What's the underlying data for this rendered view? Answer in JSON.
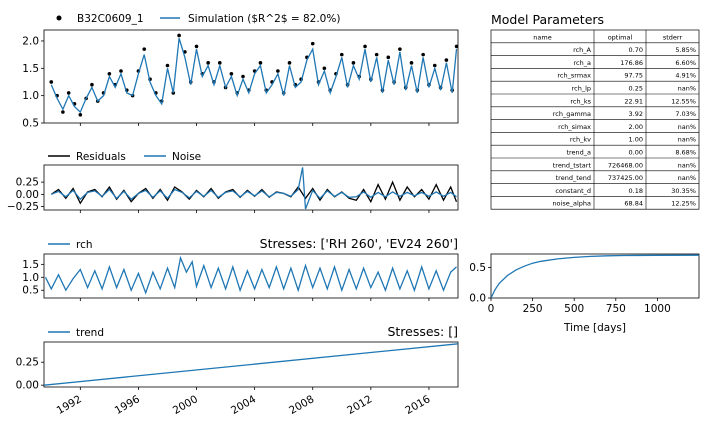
{
  "figure": {
    "params_title": "Model Parameters",
    "params_table": {
      "headers": [
        "name",
        "optimal",
        "stderr"
      ],
      "rows": [
        [
          "rch_A",
          "0.70",
          "5.85%"
        ],
        [
          "rch_a",
          "176.86",
          "6.60%"
        ],
        [
          "rch_srmax",
          "97.75",
          "4.91%"
        ],
        [
          "rch_lp",
          "0.25",
          "nan%"
        ],
        [
          "rch_ks",
          "22.91",
          "12.55%"
        ],
        [
          "rch_gamma",
          "3.92",
          "7.03%"
        ],
        [
          "rch_simax",
          "2.00",
          "nan%"
        ],
        [
          "rch_kv",
          "1.00",
          "nan%"
        ],
        [
          "trend_a",
          "0.00",
          "8.68%"
        ],
        [
          "trend_tstart",
          "726468.00",
          "nan%"
        ],
        [
          "trend_tend",
          "737425.00",
          "nan%"
        ],
        [
          "constant_d",
          "0.18",
          "30.35%"
        ],
        [
          "noise_alpha",
          "68.84",
          "12.25%"
        ]
      ]
    }
  },
  "chart_data": [
    {
      "type": "scatter",
      "panel": "simulation",
      "legend": [
        "B32C0609_1",
        "Simulation ($R^2$ = 82.0%)"
      ],
      "legend_placement": "top",
      "ylim": [
        0.5,
        2.2
      ],
      "y_ticks": [
        "0.5",
        "1.0",
        "1.5",
        "2.0"
      ],
      "xlim": [
        1989.5,
        2018.0
      ],
      "series": [
        {
          "name": "B32C0609_1",
          "style": "dots",
          "color": "#000000",
          "x": [
            1990.0,
            1990.4,
            1990.8,
            1991.2,
            1991.6,
            1992.0,
            1992.4,
            1992.8,
            1993.2,
            1993.6,
            1994.0,
            1994.4,
            1994.8,
            1995.2,
            1995.6,
            1996.0,
            1996.4,
            1996.8,
            1997.2,
            1997.6,
            1998.0,
            1998.4,
            1998.8,
            1999.2,
            1999.6,
            2000.0,
            2000.4,
            2000.8,
            2001.2,
            2001.6,
            2002.0,
            2002.4,
            2002.8,
            2003.2,
            2003.6,
            2004.0,
            2004.4,
            2004.8,
            2005.2,
            2005.6,
            2006.0,
            2006.4,
            2006.8,
            2007.2,
            2007.6,
            2008.0,
            2008.4,
            2008.8,
            2009.2,
            2009.6,
            2010.0,
            2010.4,
            2010.8,
            2011.2,
            2011.6,
            2012.0,
            2012.4,
            2012.8,
            2013.2,
            2013.6,
            2014.0,
            2014.4,
            2014.8,
            2015.2,
            2015.6,
            2016.0,
            2016.4,
            2016.8,
            2017.2,
            2017.6,
            2017.9
          ],
          "y": [
            1.25,
            1.0,
            0.7,
            1.05,
            0.85,
            0.65,
            0.95,
            1.2,
            0.9,
            1.05,
            1.4,
            1.2,
            1.45,
            1.1,
            1.0,
            1.45,
            1.85,
            1.3,
            1.05,
            0.9,
            1.55,
            1.05,
            2.1,
            1.8,
            1.25,
            1.9,
            1.4,
            1.6,
            1.25,
            1.6,
            1.15,
            1.4,
            1.05,
            1.35,
            1.1,
            1.45,
            1.6,
            1.1,
            1.25,
            1.45,
            1.05,
            1.6,
            1.2,
            1.3,
            1.7,
            1.95,
            1.25,
            1.5,
            1.1,
            1.4,
            1.75,
            1.2,
            1.6,
            1.35,
            1.9,
            1.3,
            1.75,
            1.1,
            1.7,
            1.25,
            1.85,
            1.15,
            1.6,
            1.1,
            1.75,
            1.2,
            1.55,
            1.15,
            1.65,
            1.1,
            1.9
          ]
        },
        {
          "name": "Simulation ($R^2$ = 82.0%)",
          "style": "line",
          "color": "#1f77b4",
          "x": [
            1990.0,
            1990.4,
            1990.8,
            1991.2,
            1991.6,
            1992.0,
            1992.4,
            1992.8,
            1993.2,
            1993.6,
            1994.0,
            1994.4,
            1994.8,
            1995.2,
            1995.6,
            1996.0,
            1996.4,
            1996.8,
            1997.2,
            1997.6,
            1998.0,
            1998.4,
            1998.8,
            1999.2,
            1999.6,
            2000.0,
            2000.4,
            2000.8,
            2001.2,
            2001.6,
            2002.0,
            2002.4,
            2002.8,
            2003.2,
            2003.6,
            2004.0,
            2004.4,
            2004.8,
            2005.2,
            2005.6,
            2006.0,
            2006.4,
            2006.8,
            2007.2,
            2007.6,
            2008.0,
            2008.4,
            2008.8,
            2009.2,
            2009.6,
            2010.0,
            2010.4,
            2010.8,
            2011.2,
            2011.6,
            2012.0,
            2012.4,
            2012.8,
            2013.2,
            2013.6,
            2014.0,
            2014.4,
            2014.8,
            2015.2,
            2015.6,
            2016.0,
            2016.4,
            2016.8,
            2017.2,
            2017.6,
            2017.9
          ],
          "y": [
            1.2,
            0.95,
            0.75,
            1.0,
            0.8,
            0.7,
            0.95,
            1.15,
            0.9,
            1.0,
            1.35,
            1.15,
            1.4,
            1.05,
            1.0,
            1.4,
            1.75,
            1.25,
            1.0,
            0.85,
            1.5,
            1.05,
            2.05,
            1.7,
            1.2,
            1.85,
            1.35,
            1.55,
            1.2,
            1.55,
            1.15,
            1.35,
            1.0,
            1.3,
            1.05,
            1.4,
            1.55,
            1.05,
            1.2,
            1.4,
            1.0,
            1.55,
            1.15,
            1.25,
            1.65,
            1.85,
            1.2,
            1.45,
            1.05,
            1.35,
            1.7,
            1.15,
            1.55,
            1.3,
            1.85,
            1.25,
            1.7,
            1.05,
            1.65,
            1.2,
            1.8,
            1.1,
            1.55,
            1.05,
            1.7,
            1.15,
            1.5,
            1.1,
            1.6,
            1.05,
            1.85
          ]
        }
      ]
    },
    {
      "type": "line",
      "panel": "residuals",
      "legend": [
        "Residuals",
        "Noise"
      ],
      "legend_placement": "top",
      "ylim": [
        -0.32,
        0.6
      ],
      "y_ticks": [
        "0.25",
        "0.00",
        "−0.25"
      ],
      "xlim": [
        1989.5,
        2018.0
      ],
      "series": [
        {
          "name": "Residuals",
          "color": "#000000",
          "x": [
            1990.0,
            1990.5,
            1991.0,
            1991.5,
            1992.0,
            1992.5,
            1993.0,
            1993.5,
            1994.0,
            1994.5,
            1995.0,
            1995.5,
            1996.0,
            1996.5,
            1997.0,
            1997.5,
            1998.0,
            1998.5,
            1999.0,
            1999.5,
            2000.0,
            2000.5,
            2001.0,
            2001.5,
            2002.0,
            2002.5,
            2003.0,
            2003.5,
            2004.0,
            2004.5,
            2005.0,
            2005.5,
            2006.0,
            2006.5,
            2007.0,
            2007.5,
            2008.0,
            2008.5,
            2009.0,
            2009.5,
            2010.0,
            2010.5,
            2011.0,
            2011.5,
            2012.0,
            2012.5,
            2013.0,
            2013.5,
            2014.0,
            2014.5,
            2015.0,
            2015.5,
            2016.0,
            2016.5,
            2017.0,
            2017.5,
            2017.9
          ],
          "y": [
            0.0,
            0.1,
            -0.08,
            0.12,
            -0.18,
            0.05,
            0.1,
            -0.05,
            0.15,
            -0.1,
            0.08,
            -0.15,
            0.02,
            0.12,
            -0.08,
            0.1,
            -0.12,
            0.15,
            0.05,
            -0.1,
            0.08,
            -0.05,
            0.12,
            -0.08,
            0.05,
            0.1,
            -0.06,
            0.08,
            -0.04,
            0.1,
            -0.06,
            0.05,
            0.02,
            -0.05,
            0.15,
            -0.08,
            0.12,
            -0.12,
            0.1,
            -0.05,
            0.05,
            -0.08,
            -0.12,
            0.1,
            -0.15,
            0.2,
            -0.1,
            0.25,
            -0.12,
            0.15,
            -0.05,
            0.1,
            -0.1,
            0.2,
            -0.12,
            0.15,
            -0.15
          ]
        },
        {
          "name": "Noise",
          "color": "#1f77b4",
          "x": [
            1990.0,
            1990.5,
            1991.0,
            1991.5,
            1992.0,
            1992.5,
            1993.0,
            1993.5,
            1994.0,
            1994.5,
            1995.0,
            1995.5,
            1996.0,
            1996.5,
            1997.0,
            1997.5,
            1998.0,
            1998.5,
            1999.0,
            1999.5,
            2000.0,
            2000.5,
            2001.0,
            2001.5,
            2002.0,
            2002.5,
            2003.0,
            2003.5,
            2004.0,
            2004.5,
            2005.0,
            2005.5,
            2006.0,
            2006.5,
            2007.0,
            2007.3,
            2007.5,
            2008.0,
            2008.5,
            2009.0,
            2009.5,
            2010.0,
            2010.5,
            2011.0,
            2011.5,
            2012.0,
            2012.5,
            2013.0,
            2013.5,
            2014.0,
            2014.5,
            2015.0,
            2015.5,
            2016.0,
            2016.5,
            2017.0,
            2017.5,
            2017.9
          ],
          "y": [
            0.0,
            0.06,
            -0.05,
            0.08,
            -0.1,
            0.04,
            0.07,
            -0.04,
            0.1,
            -0.08,
            0.06,
            -0.1,
            0.02,
            0.08,
            -0.06,
            0.07,
            -0.08,
            0.1,
            0.04,
            -0.07,
            0.06,
            -0.04,
            0.08,
            -0.06,
            0.04,
            0.07,
            -0.05,
            0.06,
            -0.03,
            0.07,
            -0.05,
            0.04,
            0.02,
            -0.04,
            0.1,
            0.55,
            -0.3,
            0.08,
            -0.08,
            0.07,
            -0.04,
            0.04,
            -0.06,
            -0.05,
            0.05,
            -0.06,
            0.04,
            -0.05,
            0.05,
            -0.04,
            0.04,
            -0.03,
            0.04,
            -0.04,
            0.05,
            -0.04,
            0.04,
            -0.05
          ]
        }
      ]
    },
    {
      "type": "line",
      "panel": "rch",
      "title": "Stresses: ['RH 260', 'EV24 260']",
      "legend": [
        "rch"
      ],
      "legend_placement": "top-left",
      "ylim": [
        0.2,
        1.9
      ],
      "y_ticks": [
        "0.5",
        "1.0",
        "1.5"
      ],
      "xlim": [
        1989.5,
        2018.0
      ],
      "series": [
        {
          "name": "rch",
          "color": "#1f77b4",
          "x": [
            1989.6,
            1990.0,
            1990.5,
            1991.0,
            1991.5,
            1992.0,
            1992.5,
            1993.0,
            1993.5,
            1994.0,
            1994.5,
            1995.0,
            1995.5,
            1996.0,
            1996.5,
            1997.0,
            1997.5,
            1998.0,
            1998.5,
            1998.9,
            1999.3,
            1999.7,
            2000.0,
            2000.5,
            2001.0,
            2001.5,
            2002.0,
            2002.5,
            2003.0,
            2003.5,
            2004.0,
            2004.5,
            2005.0,
            2005.5,
            2006.0,
            2006.5,
            2007.0,
            2007.5,
            2008.0,
            2008.5,
            2009.0,
            2009.5,
            2010.0,
            2010.5,
            2011.0,
            2011.5,
            2012.0,
            2012.5,
            2013.0,
            2013.5,
            2014.0,
            2014.5,
            2015.0,
            2015.5,
            2016.0,
            2016.5,
            2017.0,
            2017.5,
            2017.9
          ],
          "y": [
            1.0,
            0.55,
            1.1,
            0.5,
            0.95,
            1.3,
            0.6,
            1.25,
            0.55,
            1.4,
            0.6,
            1.3,
            0.5,
            1.15,
            0.4,
            1.2,
            0.55,
            1.35,
            0.6,
            1.75,
            1.2,
            1.6,
            0.65,
            1.45,
            0.6,
            1.35,
            0.55,
            1.4,
            0.5,
            1.25,
            0.55,
            1.3,
            0.6,
            1.4,
            0.55,
            1.35,
            0.5,
            1.45,
            0.6,
            1.35,
            0.55,
            1.4,
            0.5,
            1.3,
            0.55,
            1.35,
            0.6,
            1.2,
            0.5,
            1.35,
            0.55,
            1.25,
            0.5,
            1.4,
            0.55,
            1.25,
            0.5,
            1.2,
            1.4
          ]
        }
      ]
    },
    {
      "type": "line",
      "panel": "rch_response",
      "xlabel": "Time [days]",
      "xlim": [
        0,
        1250
      ],
      "ylim": [
        0,
        0.72
      ],
      "x_ticks": [
        "0",
        "250",
        "500",
        "750",
        "1000"
      ],
      "y_ticks": [
        "0.0",
        "0.5"
      ],
      "series": [
        {
          "name": "",
          "color": "#1f77b4",
          "x": [
            0,
            25,
            50,
            100,
            150,
            200,
            250,
            300,
            400,
            500,
            600,
            700,
            800,
            1000,
            1250
          ],
          "y": [
            0.0,
            0.14,
            0.24,
            0.37,
            0.46,
            0.52,
            0.57,
            0.6,
            0.64,
            0.665,
            0.68,
            0.69,
            0.695,
            0.698,
            0.7
          ]
        }
      ]
    },
    {
      "type": "line",
      "panel": "trend",
      "title": "Stresses: []",
      "legend": [
        "trend"
      ],
      "legend_placement": "top-left",
      "ylim": [
        -0.02,
        0.47
      ],
      "y_ticks": [
        "0.00",
        "0.25"
      ],
      "x_ticks": [
        "1992",
        "1996",
        "2000",
        "2004",
        "2008",
        "2012",
        "2016"
      ],
      "xlim": [
        1989.5,
        2018.0
      ],
      "series": [
        {
          "name": "trend",
          "color": "#1f77b4",
          "x": [
            1989.5,
            2018.0
          ],
          "y": [
            0.0,
            0.45
          ]
        }
      ]
    }
  ]
}
